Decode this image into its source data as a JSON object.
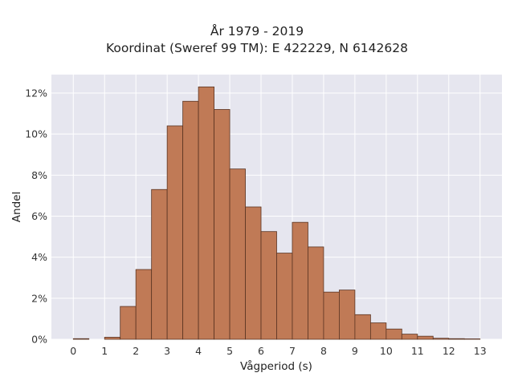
{
  "chart_data": {
    "type": "bar",
    "title": "År 1979 - 2019",
    "subtitle": "Koordinat (Sweref 99 TM): E 422229, N 6142628",
    "xlabel": "Vågperiod (s)",
    "ylabel": "Andel",
    "bin_width": 0.5,
    "bin_starts": [
      0,
      0.5,
      1,
      1.5,
      2,
      2.5,
      3,
      3.5,
      4,
      4.5,
      5,
      5.5,
      6,
      6.5,
      7,
      7.5,
      8,
      8.5,
      9,
      9.5,
      10,
      10.5,
      11,
      11.5,
      12,
      12.5
    ],
    "values": [
      0.03,
      0,
      0.1,
      1.6,
      3.4,
      7.3,
      10.4,
      11.6,
      12.3,
      11.2,
      8.3,
      6.45,
      5.25,
      4.2,
      5.7,
      4.5,
      2.3,
      2.4,
      1.2,
      0.8,
      0.5,
      0.25,
      0.15,
      0.05,
      0.03,
      0.02
    ],
    "xlim": [
      -0.7,
      13.7
    ],
    "ylim": [
      0,
      12.9
    ],
    "x_ticks": [
      0,
      1,
      2,
      3,
      4,
      5,
      6,
      7,
      8,
      9,
      10,
      11,
      12,
      13
    ],
    "y_ticks": [
      0,
      2,
      4,
      6,
      8,
      10,
      12
    ],
    "y_tick_labels": [
      "0%",
      "2%",
      "4%",
      "6%",
      "8%",
      "10%",
      "12%"
    ],
    "grid": true,
    "colors": {
      "bar_fill": "#c07a56",
      "bar_stroke": "#5a3422",
      "plot_bg": "#e6e6ef",
      "grid": "#ffffff"
    }
  }
}
